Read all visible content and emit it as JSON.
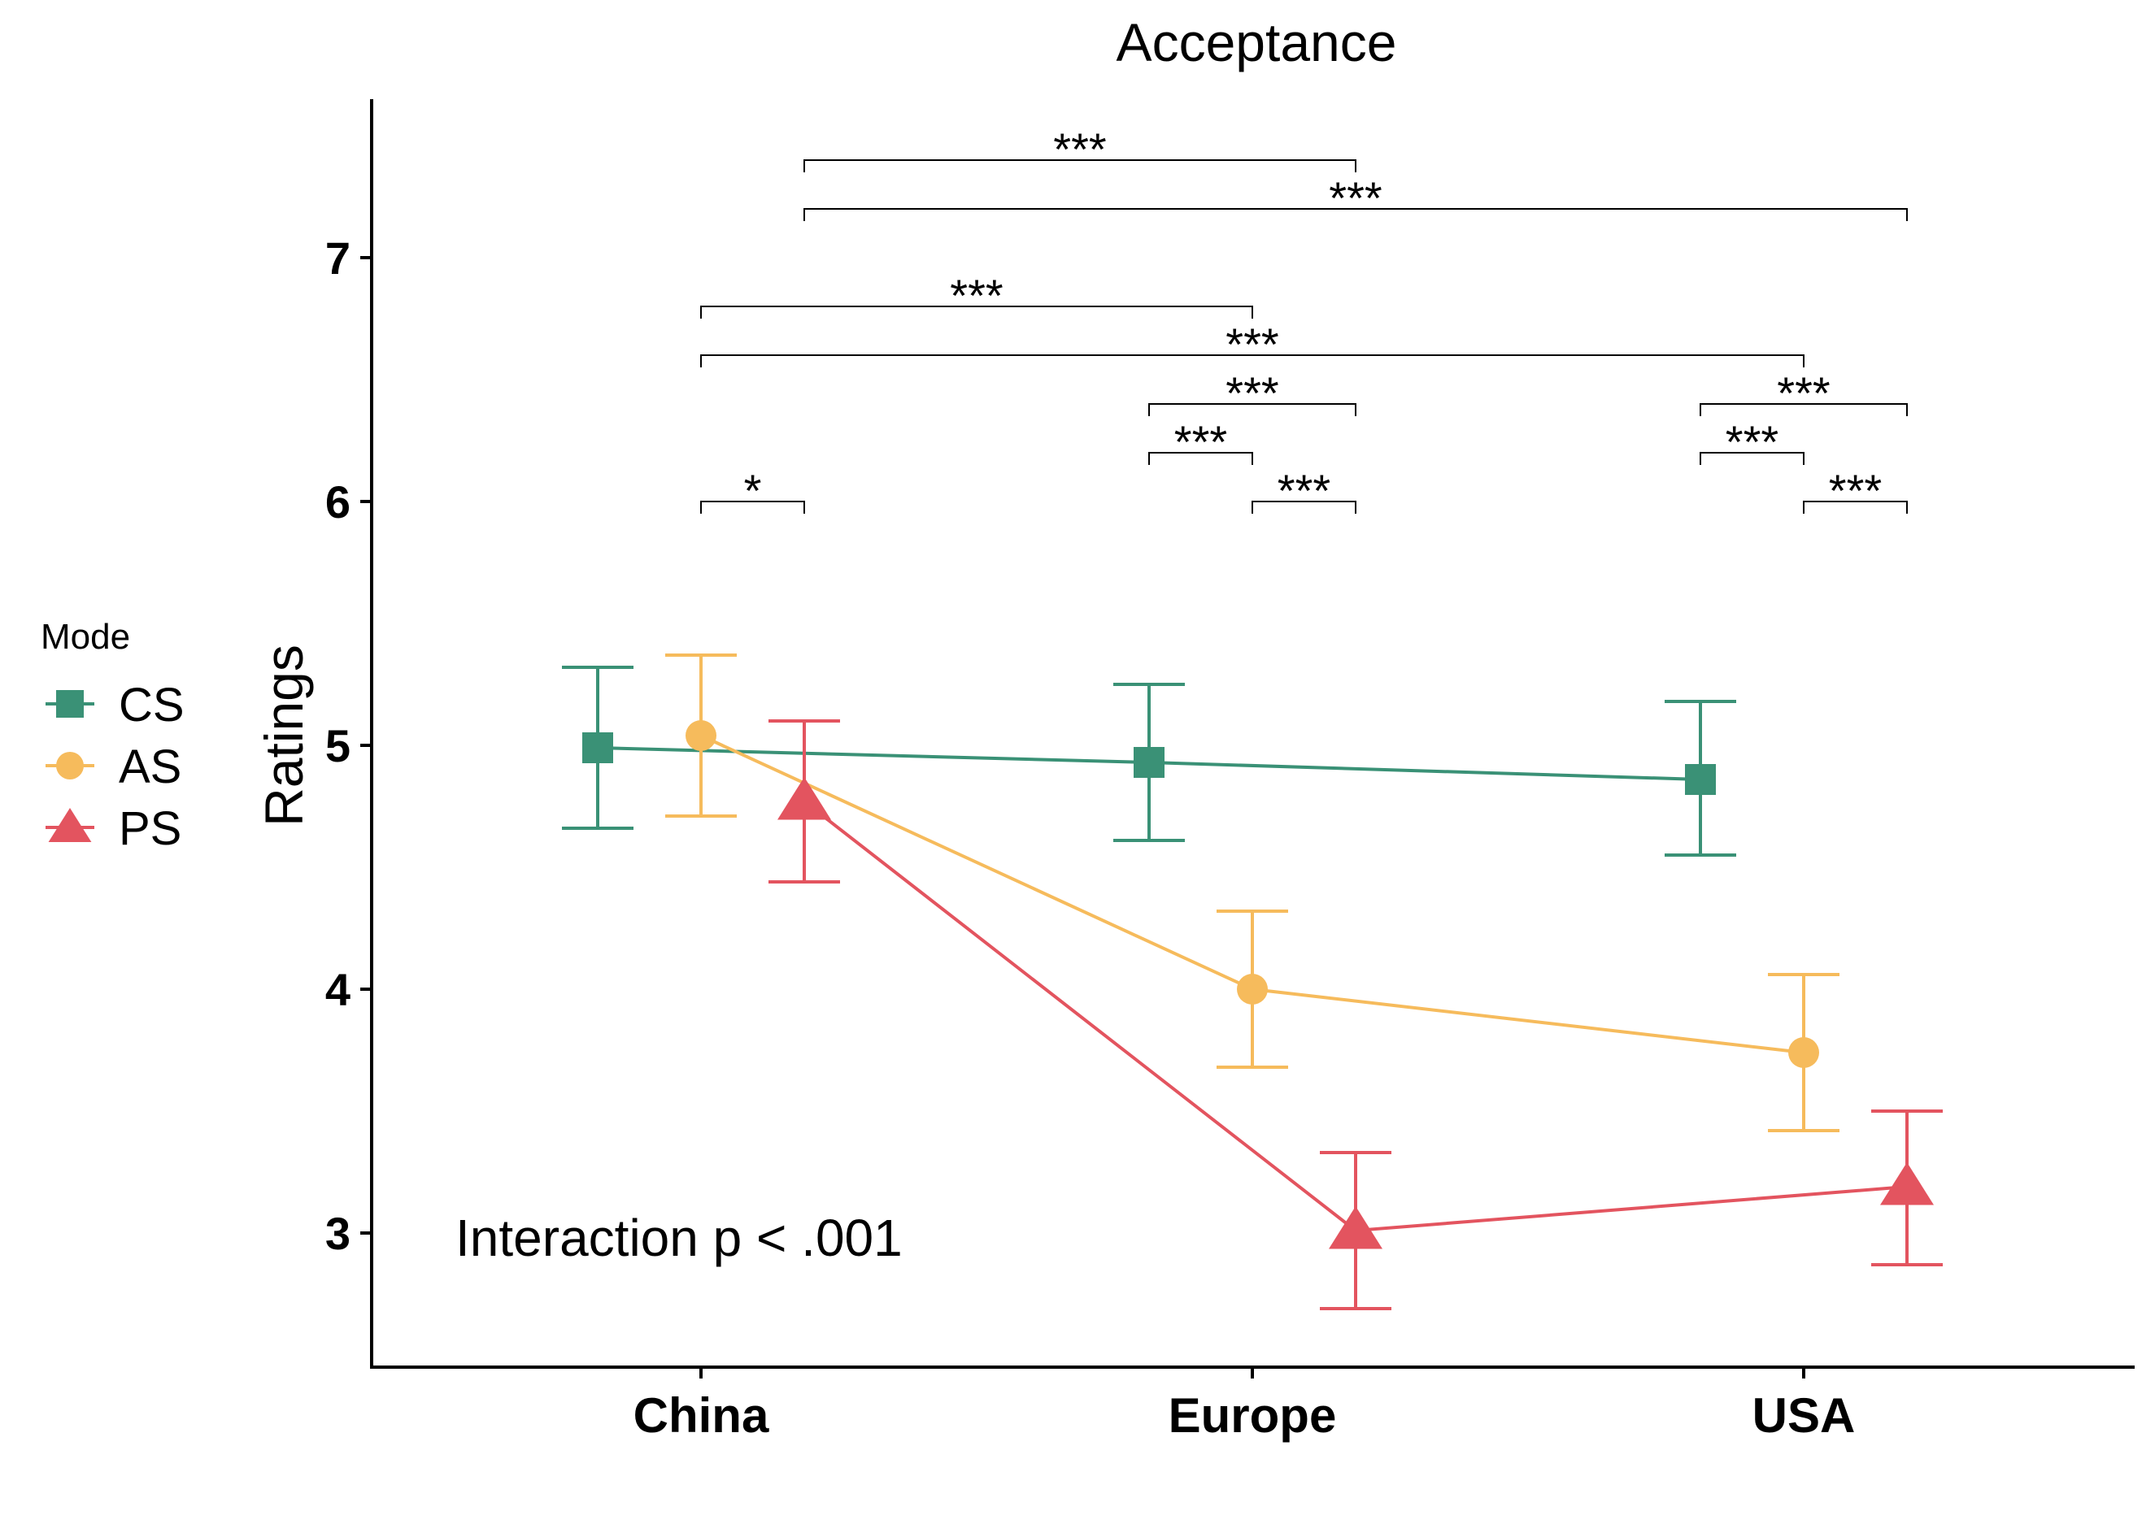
{
  "chart_data": {
    "type": "line",
    "title": "Acceptance",
    "xlabel": "",
    "ylabel": "Ratings",
    "ylim": [
      2.45,
      7.65
    ],
    "yticks": [
      "3",
      "4",
      "5",
      "6",
      "7"
    ],
    "categories": [
      "China",
      "Europe",
      "USA"
    ],
    "legend_title": "Mode",
    "legend_position": "left",
    "series": [
      {
        "name": "CS",
        "color": "#3a9176",
        "marker": "square",
        "values": [
          4.99,
          4.93,
          4.86
        ],
        "lower": [
          4.66,
          4.61,
          4.55
        ],
        "upper": [
          5.32,
          5.25,
          5.18
        ]
      },
      {
        "name": "AS",
        "color": "#f6bb5c",
        "marker": "circle",
        "values": [
          5.04,
          4.0,
          3.74
        ],
        "lower": [
          4.71,
          3.68,
          3.42
        ],
        "upper": [
          5.37,
          4.32,
          4.06
        ]
      },
      {
        "name": "PS",
        "color": "#e3545f",
        "marker": "triangle",
        "values": [
          4.77,
          3.01,
          3.19
        ],
        "lower": [
          4.44,
          2.69,
          2.87
        ],
        "upper": [
          5.1,
          3.33,
          3.5
        ]
      }
    ],
    "significance": [
      {
        "from": [
          0,
          "AS"
        ],
        "to": [
          0,
          "PS"
        ],
        "y": 6.0,
        "label": "*"
      },
      {
        "from": [
          1,
          "AS"
        ],
        "to": [
          1,
          "PS"
        ],
        "y": 6.0,
        "label": "***"
      },
      {
        "from": [
          1,
          "CS"
        ],
        "to": [
          1,
          "AS"
        ],
        "y": 6.2,
        "label": "***"
      },
      {
        "from": [
          1,
          "CS"
        ],
        "to": [
          1,
          "PS"
        ],
        "y": 6.4,
        "label": "***"
      },
      {
        "from": [
          2,
          "AS"
        ],
        "to": [
          2,
          "PS"
        ],
        "y": 6.0,
        "label": "***"
      },
      {
        "from": [
          2,
          "CS"
        ],
        "to": [
          2,
          "AS"
        ],
        "y": 6.2,
        "label": "***"
      },
      {
        "from": [
          2,
          "CS"
        ],
        "to": [
          2,
          "PS"
        ],
        "y": 6.4,
        "label": "***"
      },
      {
        "from": [
          0,
          "AS"
        ],
        "to": [
          2,
          "AS"
        ],
        "y": 6.6,
        "label": "***"
      },
      {
        "from": [
          0,
          "AS"
        ],
        "to": [
          1,
          "AS"
        ],
        "y": 6.8,
        "label": "***"
      },
      {
        "from": [
          0,
          "PS"
        ],
        "to": [
          2,
          "PS"
        ],
        "y": 7.2,
        "label": "***"
      },
      {
        "from": [
          0,
          "PS"
        ],
        "to": [
          1,
          "PS"
        ],
        "y": 7.4,
        "label": "***"
      }
    ],
    "annotation": "Interaction p < .001"
  }
}
